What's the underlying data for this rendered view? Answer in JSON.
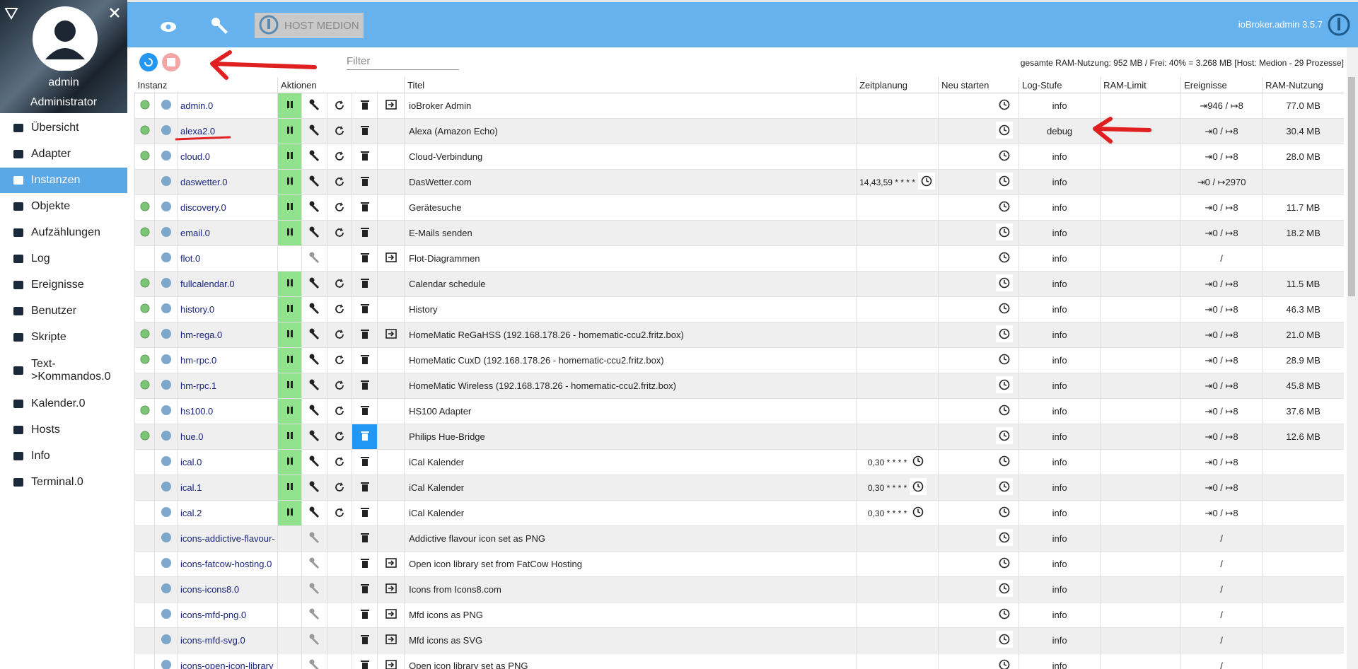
{
  "sidebar": {
    "user": "admin",
    "role": "Administrator",
    "menu": [
      "Übersicht",
      "Adapter",
      "Instanzen",
      "Objekte",
      "Aufzählungen",
      "Log",
      "Ereignisse",
      "Benutzer",
      "Skripte",
      "Text->Kommandos.0",
      "Kalender.0",
      "Hosts",
      "Info",
      "Terminal.0"
    ],
    "active": 2
  },
  "topbar": {
    "host": "HOST MEDION",
    "version": "ioBroker.admin 3.5.7"
  },
  "toolbar": {
    "filter": "Filter",
    "ram": "gesamte RAM-Nutzung: 952 MB / Frei: 40% = 3.268 MB [Host: Medion - 29 Prozesse]"
  },
  "table": {
    "headers": [
      "Instanz",
      "Aktionen",
      "Titel",
      "Zeitplanung",
      "Neu starten",
      "Log-Stufe",
      "RAM-Limit",
      "Ereignisse",
      "RAM-Nutzung"
    ],
    "rows": [
      {
        "instance": "admin.0",
        "title": "ioBroker Admin",
        "schedule": "",
        "log": "info",
        "events": "⇥946 / ↦8",
        "ram": "77.0 MB",
        "alive": true,
        "enabled": true,
        "link": true
      },
      {
        "instance": "alexa2.0",
        "title": "Alexa (Amazon Echo)",
        "schedule": "",
        "log": "debug",
        "events": "⇥0 / ↦8",
        "ram": "30.4 MB",
        "alive": true,
        "enabled": true,
        "link": false
      },
      {
        "instance": "cloud.0",
        "title": "Cloud-Verbindung",
        "schedule": "",
        "log": "info",
        "events": "⇥0 / ↦8",
        "ram": "28.0 MB",
        "alive": true,
        "enabled": true,
        "link": false
      },
      {
        "instance": "daswetter.0",
        "title": "DasWetter.com",
        "schedule": "14,43,59 * * * *",
        "log": "info",
        "events": "⇥0 / ↦2970",
        "ram": "",
        "alive": false,
        "enabled": true,
        "link": false
      },
      {
        "instance": "discovery.0",
        "title": "Gerätesuche",
        "schedule": "",
        "log": "info",
        "events": "⇥0 / ↦8",
        "ram": "11.7 MB",
        "alive": true,
        "enabled": true,
        "link": false
      },
      {
        "instance": "email.0",
        "title": "E-Mails senden",
        "schedule": "",
        "log": "info",
        "events": "⇥0 / ↦8",
        "ram": "18.2 MB",
        "alive": true,
        "enabled": true,
        "link": false
      },
      {
        "instance": "flot.0",
        "title": "Flot-Diagrammen",
        "schedule": "",
        "log": "info",
        "events": "/",
        "ram": "",
        "alive": false,
        "enabled": false,
        "link": true
      },
      {
        "instance": "fullcalendar.0",
        "title": "Calendar schedule",
        "schedule": "",
        "log": "info",
        "events": "⇥0 / ↦8",
        "ram": "11.5 MB",
        "alive": true,
        "enabled": true,
        "link": false
      },
      {
        "instance": "history.0",
        "title": "History",
        "schedule": "",
        "log": "info",
        "events": "⇥0 / ↦8",
        "ram": "46.3 MB",
        "alive": true,
        "enabled": true,
        "link": false
      },
      {
        "instance": "hm-rega.0",
        "title": "HomeMatic ReGaHSS (192.168.178.26 - homematic-ccu2.fritz.box)",
        "schedule": "",
        "log": "info",
        "events": "⇥0 / ↦8",
        "ram": "21.0 MB",
        "alive": true,
        "enabled": true,
        "link": true
      },
      {
        "instance": "hm-rpc.0",
        "title": "HomeMatic CuxD (192.168.178.26 - homematic-ccu2.fritz.box)",
        "schedule": "",
        "log": "info",
        "events": "⇥0 / ↦8",
        "ram": "28.9 MB",
        "alive": true,
        "enabled": true,
        "link": false
      },
      {
        "instance": "hm-rpc.1",
        "title": "HomeMatic Wireless (192.168.178.26 - homematic-ccu2.fritz.box)",
        "schedule": "",
        "log": "info",
        "events": "⇥0 / ↦8",
        "ram": "45.8 MB",
        "alive": true,
        "enabled": true,
        "link": false
      },
      {
        "instance": "hs100.0",
        "title": "HS100 Adapter",
        "schedule": "",
        "log": "info",
        "events": "⇥0 / ↦8",
        "ram": "37.6 MB",
        "alive": true,
        "enabled": true,
        "link": false
      },
      {
        "instance": "hue.0",
        "title": "Philips Hue-Bridge",
        "schedule": "",
        "log": "info",
        "events": "⇥0 / ↦8",
        "ram": "12.6 MB",
        "alive": true,
        "enabled": true,
        "link": false
      },
      {
        "instance": "ical.0",
        "title": "iCal Kalender",
        "schedule": "0,30 * * * *",
        "log": "info",
        "events": "⇥0 / ↦8",
        "ram": "",
        "alive": false,
        "enabled": true,
        "link": false
      },
      {
        "instance": "ical.1",
        "title": "iCal Kalender",
        "schedule": "0,30 * * * *",
        "log": "info",
        "events": "⇥0 / ↦8",
        "ram": "",
        "alive": false,
        "enabled": true,
        "link": false
      },
      {
        "instance": "ical.2",
        "title": "iCal Kalender",
        "schedule": "0,30 * * * *",
        "log": "info",
        "events": "⇥0 / ↦8",
        "ram": "",
        "alive": false,
        "enabled": true,
        "link": false
      },
      {
        "instance": "icons-addictive-flavour-",
        "title": "Addictive flavour icon set as PNG",
        "schedule": "",
        "log": "info",
        "events": "/",
        "ram": "",
        "alive": false,
        "enabled": false,
        "link": false
      },
      {
        "instance": "icons-fatcow-hosting.0",
        "title": "Open icon library set from FatCow Hosting",
        "schedule": "",
        "log": "info",
        "events": "/",
        "ram": "",
        "alive": false,
        "enabled": false,
        "link": true
      },
      {
        "instance": "icons-icons8.0",
        "title": "Icons from Icons8.com",
        "schedule": "",
        "log": "info",
        "events": "/",
        "ram": "",
        "alive": false,
        "enabled": false,
        "link": true
      },
      {
        "instance": "icons-mfd-png.0",
        "title": "Mfd icons as PNG",
        "schedule": "",
        "log": "info",
        "events": "/",
        "ram": "",
        "alive": false,
        "enabled": false,
        "link": true
      },
      {
        "instance": "icons-mfd-svg.0",
        "title": "Mfd icons as SVG",
        "schedule": "",
        "log": "info",
        "events": "/",
        "ram": "",
        "alive": false,
        "enabled": false,
        "link": true
      },
      {
        "instance": "icons-open-icon-library",
        "title": "Open icon library set as PNG",
        "schedule": "",
        "log": "info",
        "events": "/",
        "ram": "",
        "alive": false,
        "enabled": false,
        "link": true
      }
    ]
  }
}
